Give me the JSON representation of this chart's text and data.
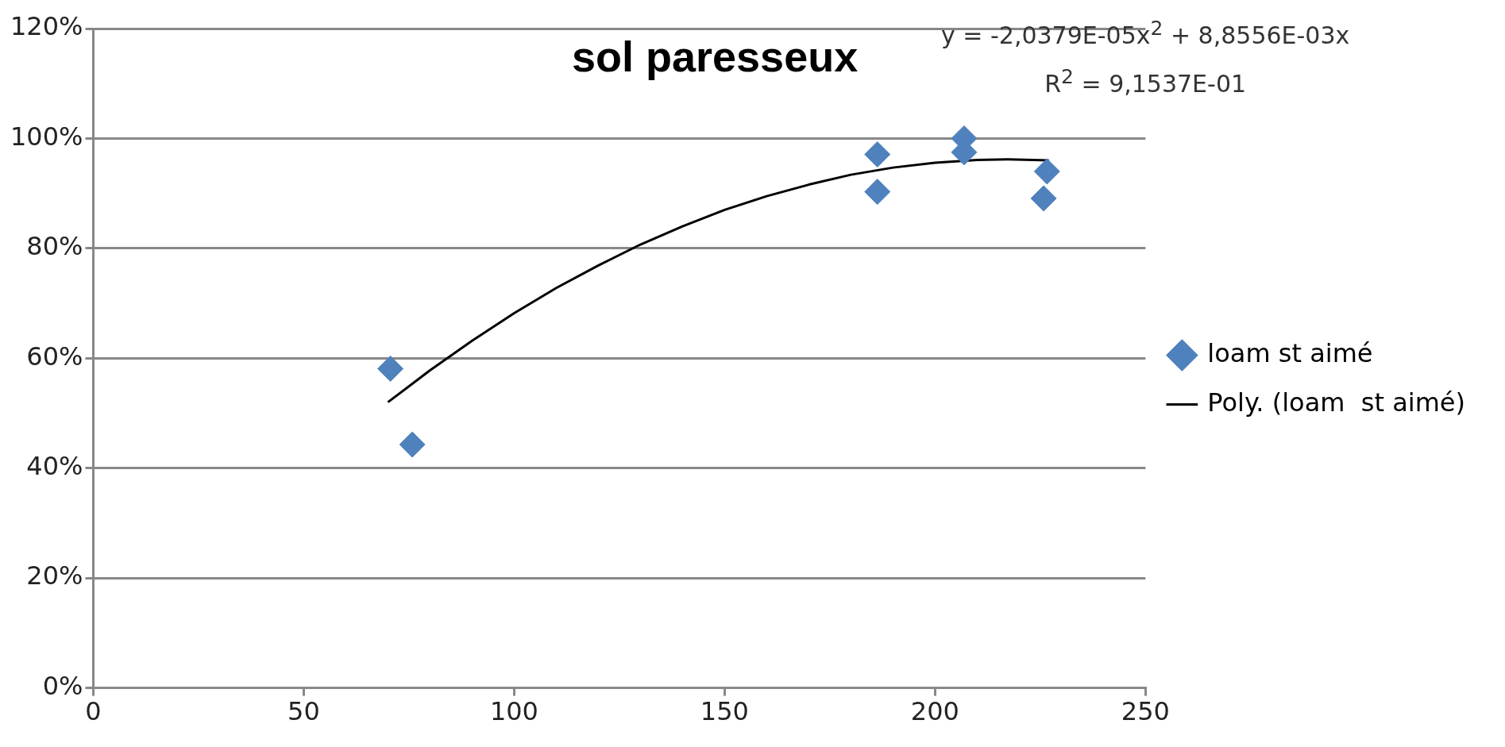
{
  "chart_data": {
    "type": "scatter",
    "title": "sol paresseux",
    "annotations": [
      "y = -2,0379E-05x$^{2}$ + 8,8556E-03x",
      "R$^{2}$ = 9,1537E-01"
    ],
    "xlim": [
      0,
      250
    ],
    "xticks": [
      0,
      50,
      100,
      150,
      200,
      250
    ],
    "ylim": [
      0,
      120
    ],
    "yticks": [
      {
        "value": 0,
        "label": "0%"
      },
      {
        "value": 20,
        "label": "20%"
      },
      {
        "value": 40,
        "label": "40%"
      },
      {
        "value": 60,
        "label": "60%"
      },
      {
        "value": 80,
        "label": "80%"
      },
      {
        "value": 100,
        "label": "100%"
      },
      {
        "value": 120,
        "label": "120%"
      }
    ],
    "grid": "y",
    "legend": "right",
    "marker": "diamond",
    "series": [
      {
        "name": "loam st aimé",
        "type": "scatter",
        "color": "#4f81bd",
        "x": [
          70.6,
          75.8,
          186.3,
          186.3,
          206.9,
          206.9,
          226.6,
          225.8
        ],
        "values": [
          58.1,
          44.3,
          97.1,
          90.3,
          100,
          97.5,
          94,
          89.1
        ]
      },
      {
        "name": "Poly. (loam  st aimé)",
        "type": "line",
        "color": "#000000",
        "marker": "none",
        "line_style": "solid",
        "x": [
          70,
          80,
          90,
          100,
          110,
          120,
          130,
          140,
          150,
          160,
          170,
          180,
          190,
          200,
          210,
          217,
          227
        ],
        "values": [
          52.0,
          57.8,
          63.2,
          68.2,
          72.8,
          76.9,
          80.7,
          84.0,
          87.0,
          89.5,
          91.6,
          93.4,
          94.7,
          95.6,
          96.1,
          96.2,
          96.0
        ]
      }
    ]
  }
}
